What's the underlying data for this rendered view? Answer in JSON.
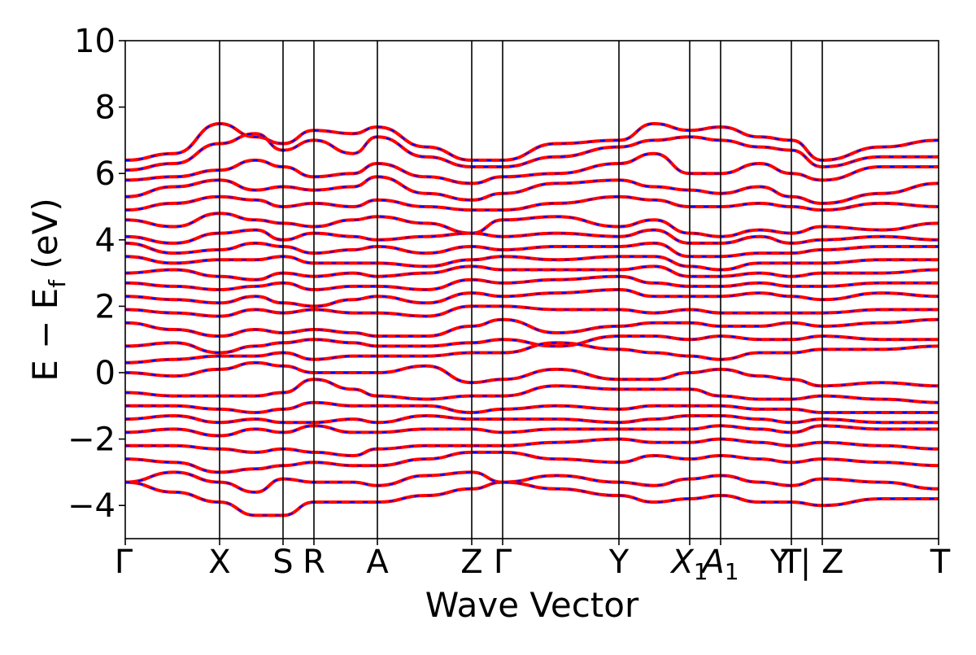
{
  "chart_data": {
    "type": "line",
    "xlabel": "Wave Vector",
    "ylabel_main": "E − E",
    "ylabel_sub": "f",
    "ylabel_unit": " (eV)",
    "ylim": [
      -5,
      10
    ],
    "xlim": [
      0,
      10
    ],
    "yticks": [
      -4,
      -2,
      0,
      2,
      4,
      6,
      8,
      10
    ],
    "ytick_labels": [
      "−4",
      "−2",
      "0",
      "2",
      "4",
      "6",
      "8",
      "10"
    ],
    "grid": false,
    "legend": "none",
    "line_colors": {
      "primary": "#ff0000",
      "secondary": "#0000ff"
    },
    "kpath_positions": [
      0,
      1.16,
      1.94,
      2.32,
      3.1,
      4.26,
      4.64,
      6.07,
      6.94,
      7.32,
      8.19,
      8.57,
      10.0
    ],
    "kpoint_labels": [
      {
        "text": "Γ",
        "pos": 0
      },
      {
        "text": "X",
        "pos": 1.16
      },
      {
        "text": "S",
        "pos": 1.94
      },
      {
        "text": "R",
        "pos": 2.32
      },
      {
        "text": "A",
        "pos": 3.1
      },
      {
        "text": "Z",
        "pos": 4.26
      },
      {
        "text": "Γ",
        "pos": 4.64
      },
      {
        "text": "Y",
        "pos": 6.07
      },
      {
        "text": "X",
        "sub": "1",
        "pos": 6.94,
        "italic": true
      },
      {
        "text": "A",
        "sub": "1",
        "pos": 7.32,
        "italic": true
      },
      {
        "text": "T",
        "pos": 8.19
      },
      {
        "text": "Y | Z",
        "pos": 8.38
      },
      {
        "text": "T",
        "pos": 10.0
      }
    ],
    "series": [
      {
        "x": [
          0,
          0.6,
          1.16,
          1.6,
          1.94,
          2.32,
          2.8,
          3.1,
          3.7,
          4.26,
          4.64,
          5.3,
          6.07,
          6.5,
          6.94,
          7.32,
          7.8,
          8.19,
          8.57,
          9.3,
          10
        ],
        "y": [
          6.4,
          6.6,
          7.5,
          7.1,
          6.9,
          7.3,
          7.2,
          7.4,
          6.8,
          6.4,
          6.4,
          6.9,
          7.0,
          7.5,
          7.3,
          7.4,
          7.1,
          7.0,
          6.4,
          6.8,
          7.0
        ]
      },
      {
        "x": [
          0,
          0.6,
          1.16,
          1.6,
          1.94,
          2.32,
          2.8,
          3.1,
          3.7,
          4.26,
          4.64,
          5.3,
          6.07,
          6.5,
          6.94,
          7.32,
          7.8,
          8.19,
          8.57,
          9.3,
          10
        ],
        "y": [
          6.1,
          6.3,
          6.9,
          7.2,
          6.7,
          7.0,
          6.6,
          7.1,
          6.5,
          6.2,
          6.2,
          6.5,
          6.8,
          7.0,
          7.1,
          7.0,
          6.8,
          6.7,
          6.2,
          6.5,
          6.5
        ]
      },
      {
        "x": [
          0,
          0.6,
          1.16,
          1.6,
          1.94,
          2.32,
          2.8,
          3.1,
          3.7,
          4.26,
          4.64,
          5.3,
          6.07,
          6.5,
          6.94,
          7.32,
          7.8,
          8.19,
          8.57,
          9.3,
          10
        ],
        "y": [
          5.8,
          5.9,
          6.1,
          6.4,
          6.2,
          5.9,
          6.0,
          6.3,
          5.9,
          5.7,
          5.9,
          6.0,
          6.3,
          6.6,
          6.0,
          6.0,
          6.3,
          6.0,
          5.8,
          6.2,
          6.2
        ]
      },
      {
        "x": [
          0,
          0.6,
          1.16,
          1.6,
          1.94,
          2.32,
          2.8,
          3.1,
          3.7,
          4.26,
          4.64,
          5.3,
          6.07,
          6.5,
          6.94,
          7.32,
          7.8,
          8.19,
          8.57,
          9.3,
          10
        ],
        "y": [
          5.3,
          5.6,
          5.8,
          5.5,
          5.6,
          5.5,
          5.6,
          5.9,
          5.4,
          5.2,
          5.4,
          5.7,
          5.8,
          5.6,
          5.5,
          5.4,
          5.6,
          5.3,
          5.1,
          5.4,
          5.7
        ]
      },
      {
        "x": [
          0,
          0.6,
          1.16,
          1.6,
          1.94,
          2.32,
          2.8,
          3.1,
          3.7,
          4.26,
          4.64,
          5.3,
          6.07,
          6.5,
          6.94,
          7.32,
          7.8,
          8.19,
          8.57,
          9.3,
          10
        ],
        "y": [
          4.9,
          5.1,
          5.3,
          5.2,
          5.0,
          5.1,
          5.0,
          5.2,
          5.0,
          4.9,
          4.9,
          5.1,
          5.3,
          5.2,
          5.0,
          5.0,
          5.1,
          5.0,
          4.9,
          5.1,
          5.0
        ]
      },
      {
        "x": [
          0,
          0.6,
          1.16,
          1.6,
          1.94,
          2.32,
          2.8,
          3.1,
          3.7,
          4.26,
          4.64,
          5.3,
          6.07,
          6.5,
          6.94,
          7.32,
          7.8,
          8.19,
          8.57,
          9.3,
          10
        ],
        "y": [
          4.6,
          4.4,
          4.8,
          4.6,
          4.5,
          4.4,
          4.6,
          4.7,
          4.5,
          4.2,
          4.6,
          4.7,
          4.4,
          4.6,
          4.2,
          4.1,
          4.3,
          4.2,
          4.4,
          4.3,
          4.5
        ]
      },
      {
        "x": [
          0,
          0.6,
          1.16,
          1.6,
          1.94,
          2.32,
          2.8,
          3.1,
          3.7,
          4.26,
          4.64,
          5.3,
          6.07,
          6.5,
          6.94,
          7.32,
          7.8,
          8.19,
          8.57,
          9.3,
          10
        ],
        "y": [
          4.1,
          3.9,
          4.2,
          4.3,
          4.0,
          4.2,
          4.1,
          4.0,
          4.1,
          4.2,
          4.1,
          4.2,
          4.1,
          4.3,
          3.9,
          3.9,
          4.1,
          3.9,
          4.0,
          4.1,
          4.0
        ]
      },
      {
        "x": [
          0,
          0.6,
          1.16,
          1.6,
          1.94,
          2.32,
          2.8,
          3.1,
          3.7,
          4.26,
          4.64,
          5.3,
          6.07,
          6.5,
          6.94,
          7.32,
          7.8,
          8.19,
          8.57,
          9.3,
          10
        ],
        "y": [
          3.9,
          3.6,
          3.7,
          3.9,
          3.8,
          3.6,
          3.7,
          3.8,
          3.6,
          3.8,
          3.7,
          3.8,
          3.8,
          3.9,
          3.5,
          3.5,
          3.6,
          3.6,
          3.7,
          3.8,
          3.8
        ]
      },
      {
        "x": [
          0,
          0.6,
          1.16,
          1.6,
          1.94,
          2.32,
          2.8,
          3.1,
          3.7,
          4.26,
          4.64,
          5.3,
          6.07,
          6.5,
          6.94,
          7.32,
          7.8,
          8.19,
          8.57,
          9.3,
          10
        ],
        "y": [
          3.5,
          3.3,
          3.4,
          3.4,
          3.5,
          3.3,
          3.3,
          3.3,
          3.2,
          3.4,
          3.5,
          3.4,
          3.5,
          3.5,
          3.2,
          3.1,
          3.3,
          3.3,
          3.3,
          3.4,
          3.4
        ]
      },
      {
        "x": [
          0,
          0.6,
          1.16,
          1.6,
          1.94,
          2.32,
          2.8,
          3.1,
          3.7,
          4.26,
          4.64,
          5.3,
          6.07,
          6.5,
          6.94,
          7.32,
          7.8,
          8.19,
          8.57,
          9.3,
          10
        ],
        "y": [
          3.0,
          3.1,
          2.9,
          2.8,
          3.0,
          2.9,
          3.0,
          2.9,
          3.0,
          3.2,
          3.1,
          3.1,
          3.1,
          3.2,
          2.9,
          2.9,
          3.0,
          2.9,
          3.0,
          3.0,
          3.1
        ]
      },
      {
        "x": [
          0,
          0.6,
          1.16,
          1.6,
          1.94,
          2.32,
          2.8,
          3.1,
          3.7,
          4.26,
          4.64,
          5.3,
          6.07,
          6.5,
          6.94,
          7.32,
          7.8,
          8.19,
          8.57,
          9.3,
          10
        ],
        "y": [
          2.7,
          2.6,
          2.5,
          2.6,
          2.7,
          2.5,
          2.6,
          2.6,
          2.5,
          2.8,
          2.7,
          2.8,
          2.9,
          2.7,
          2.6,
          2.6,
          2.7,
          2.6,
          2.6,
          2.7,
          2.7
        ]
      },
      {
        "x": [
          0,
          0.6,
          1.16,
          1.6,
          1.94,
          2.32,
          2.8,
          3.1,
          3.7,
          4.26,
          4.64,
          5.3,
          6.07,
          6.5,
          6.94,
          7.32,
          7.8,
          8.19,
          8.57,
          9.3,
          10
        ],
        "y": [
          2.3,
          2.2,
          2.1,
          2.3,
          2.1,
          2.0,
          2.2,
          2.3,
          2.1,
          2.4,
          2.3,
          2.4,
          2.5,
          2.3,
          2.3,
          2.3,
          2.4,
          2.3,
          2.2,
          2.4,
          2.3
        ]
      },
      {
        "x": [
          0,
          0.6,
          1.16,
          1.6,
          1.94,
          2.32,
          2.8,
          3.1,
          3.7,
          4.26,
          4.64,
          5.3,
          6.07,
          6.5,
          6.94,
          7.32,
          7.8,
          8.19,
          8.57,
          9.3,
          10
        ],
        "y": [
          1.9,
          1.8,
          1.7,
          1.9,
          1.8,
          1.9,
          1.8,
          1.8,
          1.7,
          2.0,
          2.0,
          1.9,
          1.9,
          1.8,
          1.9,
          1.8,
          1.8,
          1.8,
          1.8,
          1.9,
          1.9
        ]
      },
      {
        "x": [
          0,
          0.6,
          1.16,
          1.6,
          1.94,
          2.32,
          2.8,
          3.1,
          3.7,
          4.26,
          4.64,
          5.3,
          6.07,
          6.5,
          6.94,
          7.32,
          7.8,
          8.19,
          8.57,
          9.3,
          10
        ],
        "y": [
          1.5,
          1.3,
          1.1,
          1.3,
          1.2,
          1.3,
          1.2,
          1.1,
          1.1,
          1.4,
          1.6,
          1.2,
          1.4,
          1.5,
          1.5,
          1.4,
          1.4,
          1.5,
          1.4,
          1.5,
          1.6
        ]
      },
      {
        "x": [
          0,
          0.6,
          1.16,
          1.6,
          1.94,
          2.32,
          2.8,
          3.1,
          3.7,
          4.26,
          4.64,
          5.3,
          6.07,
          6.5,
          6.94,
          7.32,
          7.8,
          8.19,
          8.57,
          9.3,
          10
        ],
        "y": [
          0.8,
          0.9,
          0.6,
          0.8,
          0.9,
          1.0,
          0.9,
          0.8,
          0.8,
          0.9,
          1.0,
          0.8,
          1.1,
          1.1,
          1.0,
          1.1,
          1.0,
          1.0,
          1.1,
          1.0,
          1.0
        ]
      },
      {
        "x": [
          0,
          0.6,
          1.16,
          1.6,
          1.94,
          2.32,
          2.8,
          3.1,
          3.7,
          4.26,
          4.64,
          5.3,
          6.07,
          6.5,
          6.94,
          7.32,
          7.8,
          8.19,
          8.57,
          9.3,
          10
        ],
        "y": [
          0.3,
          0.4,
          0.5,
          0.5,
          0.6,
          0.4,
          0.5,
          0.5,
          0.5,
          0.6,
          0.6,
          0.9,
          0.7,
          0.6,
          0.5,
          0.4,
          0.6,
          0.6,
          0.7,
          0.7,
          0.8
        ]
      },
      {
        "x": [
          0,
          0.6,
          1.16,
          1.6,
          1.94,
          2.32,
          2.8,
          3.1,
          3.7,
          4.26,
          4.64,
          5.3,
          6.07,
          6.5,
          6.94,
          7.32,
          7.8,
          8.19,
          8.57,
          9.3,
          10
        ],
        "y": [
          0.0,
          -0.1,
          0.1,
          0.3,
          0.2,
          0.0,
          0.0,
          0.0,
          0.2,
          -0.3,
          -0.2,
          0.1,
          -0.2,
          -0.2,
          0.0,
          0.1,
          -0.1,
          -0.2,
          -0.4,
          -0.3,
          -0.4
        ]
      },
      {
        "x": [
          0,
          0.6,
          1.16,
          1.6,
          1.94,
          2.32,
          2.8,
          3.1,
          3.7,
          4.26,
          4.64,
          5.3,
          6.07,
          6.5,
          6.94,
          7.32,
          7.8,
          8.19,
          8.57,
          9.3,
          10
        ],
        "y": [
          -0.6,
          -0.7,
          -0.7,
          -0.7,
          -0.6,
          -0.2,
          -0.5,
          -0.7,
          -0.8,
          -0.7,
          -0.7,
          -0.4,
          -0.5,
          -0.5,
          -0.5,
          -0.7,
          -0.8,
          -0.8,
          -0.7,
          -0.8,
          -0.9
        ]
      },
      {
        "x": [
          0,
          0.6,
          1.16,
          1.6,
          1.94,
          2.32,
          2.8,
          3.1,
          3.7,
          4.26,
          4.64,
          5.3,
          6.07,
          6.5,
          6.94,
          7.32,
          7.8,
          8.19,
          8.57,
          9.3,
          10
        ],
        "y": [
          -1.0,
          -1.0,
          -1.1,
          -1.2,
          -1.1,
          -0.9,
          -1.0,
          -1.0,
          -1.0,
          -1.2,
          -1.1,
          -1.0,
          -1.1,
          -1.0,
          -1.0,
          -1.0,
          -1.1,
          -1.1,
          -1.2,
          -1.2,
          -1.2
        ]
      },
      {
        "x": [
          0,
          0.6,
          1.16,
          1.6,
          1.94,
          2.32,
          2.8,
          3.1,
          3.7,
          4.26,
          4.64,
          5.3,
          6.07,
          6.5,
          6.94,
          7.32,
          7.8,
          8.19,
          8.57,
          9.3,
          10
        ],
        "y": [
          -1.4,
          -1.3,
          -1.5,
          -1.4,
          -1.5,
          -1.5,
          -1.4,
          -1.5,
          -1.3,
          -1.4,
          -1.4,
          -1.4,
          -1.5,
          -1.4,
          -1.3,
          -1.3,
          -1.4,
          -1.5,
          -1.4,
          -1.5,
          -1.5
        ]
      },
      {
        "x": [
          0,
          0.6,
          1.16,
          1.6,
          1.94,
          2.32,
          2.8,
          3.1,
          3.7,
          4.26,
          4.64,
          5.3,
          6.07,
          6.5,
          6.94,
          7.32,
          7.8,
          8.19,
          8.57,
          9.3,
          10
        ],
        "y": [
          -1.8,
          -1.7,
          -1.9,
          -1.7,
          -1.8,
          -1.6,
          -1.8,
          -1.8,
          -1.7,
          -1.7,
          -1.8,
          -1.7,
          -1.7,
          -1.7,
          -1.7,
          -1.6,
          -1.7,
          -1.8,
          -1.6,
          -1.7,
          -1.7
        ]
      },
      {
        "x": [
          0,
          0.6,
          1.16,
          1.6,
          1.94,
          2.32,
          2.8,
          3.1,
          3.7,
          4.26,
          4.64,
          5.3,
          6.07,
          6.5,
          6.94,
          7.32,
          7.8,
          8.19,
          8.57,
          9.3,
          10
        ],
        "y": [
          -2.2,
          -2.2,
          -2.3,
          -2.4,
          -2.3,
          -2.4,
          -2.5,
          -2.3,
          -2.2,
          -2.2,
          -2.2,
          -2.1,
          -2.0,
          -2.1,
          -2.1,
          -2.0,
          -2.1,
          -2.2,
          -2.1,
          -2.2,
          -2.3
        ]
      },
      {
        "x": [
          0,
          0.6,
          1.16,
          1.6,
          1.94,
          2.32,
          2.8,
          3.1,
          3.7,
          4.26,
          4.64,
          5.3,
          6.07,
          6.5,
          6.94,
          7.32,
          7.8,
          8.19,
          8.57,
          9.3,
          10
        ],
        "y": [
          -2.6,
          -2.7,
          -3.0,
          -2.9,
          -2.8,
          -2.7,
          -2.8,
          -2.8,
          -2.6,
          -2.4,
          -2.4,
          -2.6,
          -2.7,
          -2.5,
          -2.6,
          -2.5,
          -2.6,
          -2.7,
          -2.6,
          -2.7,
          -2.8
        ]
      },
      {
        "x": [
          0,
          0.6,
          1.16,
          1.6,
          1.94,
          2.32,
          2.8,
          3.1,
          3.7,
          4.26,
          4.64,
          5.3,
          6.07,
          6.5,
          6.94,
          7.32,
          7.8,
          8.19,
          8.57,
          9.3,
          10
        ],
        "y": [
          -3.3,
          -3.0,
          -3.3,
          -3.6,
          -3.2,
          -3.3,
          -3.3,
          -3.4,
          -3.1,
          -3.0,
          -3.3,
          -3.1,
          -3.3,
          -3.4,
          -3.2,
          -3.1,
          -3.3,
          -3.4,
          -3.2,
          -3.3,
          -3.5
        ]
      },
      {
        "x": [
          0,
          0.6,
          1.16,
          1.6,
          1.94,
          2.32,
          2.8,
          3.1,
          3.7,
          4.26,
          4.64,
          5.3,
          6.07,
          6.5,
          6.94,
          7.32,
          7.8,
          8.19,
          8.57,
          9.3,
          10
        ],
        "y": [
          -3.3,
          -3.6,
          -3.9,
          -4.3,
          -4.3,
          -3.9,
          -3.9,
          -3.9,
          -3.7,
          -3.5,
          -3.3,
          -3.5,
          -3.7,
          -3.9,
          -3.8,
          -3.7,
          -3.9,
          -3.9,
          -4.0,
          -3.8,
          -3.8
        ]
      }
    ]
  }
}
